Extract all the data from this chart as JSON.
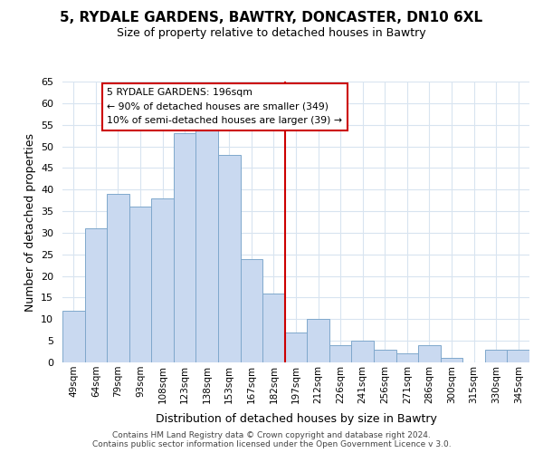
{
  "title": "5, RYDALE GARDENS, BAWTRY, DONCASTER, DN10 6XL",
  "subtitle": "Size of property relative to detached houses in Bawtry",
  "xlabel": "Distribution of detached houses by size in Bawtry",
  "ylabel": "Number of detached properties",
  "bar_labels": [
    "49sqm",
    "64sqm",
    "79sqm",
    "93sqm",
    "108sqm",
    "123sqm",
    "138sqm",
    "153sqm",
    "167sqm",
    "182sqm",
    "197sqm",
    "212sqm",
    "226sqm",
    "241sqm",
    "256sqm",
    "271sqm",
    "286sqm",
    "300sqm",
    "315sqm",
    "330sqm",
    "345sqm"
  ],
  "bar_values": [
    12,
    31,
    39,
    36,
    38,
    53,
    54,
    48,
    24,
    16,
    7,
    10,
    4,
    5,
    3,
    2,
    4,
    1,
    0,
    3,
    3
  ],
  "bar_color": "#c9d9f0",
  "bar_edgecolor": "#7fa8cc",
  "vline_color": "#cc0000",
  "annotation_title": "5 RYDALE GARDENS: 196sqm",
  "annotation_line1": "← 90% of detached houses are smaller (349)",
  "annotation_line2": "10% of semi-detached houses are larger (39) →",
  "annotation_box_edgecolor": "#cc0000",
  "ylim": [
    0,
    65
  ],
  "yticks": [
    0,
    5,
    10,
    15,
    20,
    25,
    30,
    35,
    40,
    45,
    50,
    55,
    60,
    65
  ],
  "footer1": "Contains HM Land Registry data © Crown copyright and database right 2024.",
  "footer2": "Contains public sector information licensed under the Open Government Licence v 3.0.",
  "background_color": "#ffffff",
  "grid_color": "#d8e4f0"
}
